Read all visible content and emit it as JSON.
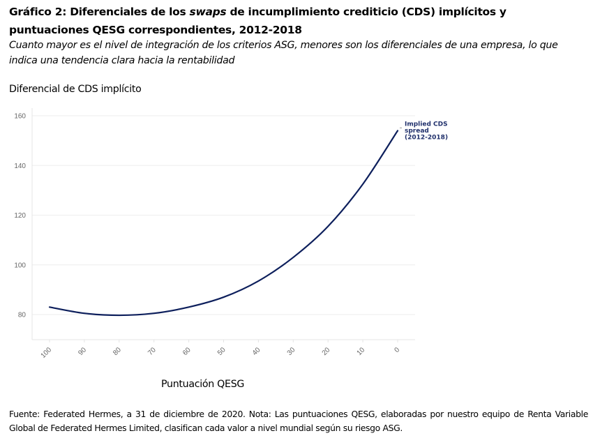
{
  "header": {
    "title_part1": "Gráfico 2: Diferenciales de los ",
    "title_italic": "swaps",
    "title_part2": " de incumplimiento crediticio (CDS) implícitos y puntuaciones QESG correspondientes, 2012-2018",
    "subtitle": "Cuanto mayor es el nivel de integración de los criterios ASG, menores son los diferenciales de una empresa, lo que indica una tendencia clara hacia la rentabilidad"
  },
  "footer": {
    "text": "Fuente: Federated Hermes, a 31 de diciembre de 2020. Nota: Las puntuaciones QESG, elaboradas por nuestro equipo de Renta Variable Global de Federated Hermes Limited, clasifican cada valor a nivel mundial según su riesgo ASG."
  },
  "colors": {
    "series": "#0d1f5c",
    "label": "#1f2f6b"
  },
  "chart_data": {
    "type": "line",
    "title": "Gráfico 2: Diferenciales de los swaps de incumplimiento crediticio (CDS) implícitos y puntuaciones QESG correspondientes, 2012-2018",
    "xlabel": "Puntuación QESG",
    "ylabel": "Diferencial de CDS implícito",
    "x": [
      100,
      90,
      80,
      70,
      60,
      50,
      40,
      30,
      20,
      10,
      0
    ],
    "x_ticks": [
      "100",
      "90",
      "80",
      "70",
      "60",
      "50",
      "40",
      "30",
      "20",
      "10",
      "0"
    ],
    "x_reversed": true,
    "xlim": [
      100,
      0
    ],
    "y_ticks": [
      80,
      100,
      120,
      140,
      160
    ],
    "ylim": [
      70,
      160
    ],
    "grid": true,
    "series": [
      {
        "name": "Implied CDS spread (2012-2018)",
        "name_lines": [
          "Implied CDS",
          "spread",
          "(2012-2018)"
        ],
        "values": [
          83,
          80.5,
          79.7,
          80.5,
          83,
          87,
          93.5,
          103,
          115.5,
          132.5,
          154
        ]
      }
    ],
    "legend": "inline-end-label"
  }
}
